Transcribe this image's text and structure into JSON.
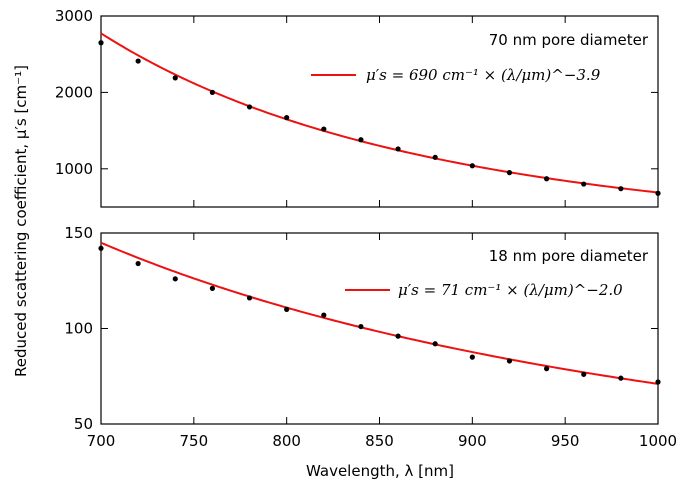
{
  "chart_data": [
    {
      "type": "scatter",
      "title": "70 nm pore diameter",
      "xlim": [
        700,
        1000
      ],
      "ylim": [
        500,
        3000
      ],
      "yticks": [
        1000,
        2000,
        3000
      ],
      "ytick_labels": [
        "1000",
        "2000",
        "3000"
      ],
      "grid": false,
      "legend_placement": "top-right",
      "series": [
        {
          "kind": "points",
          "x": [
            700,
            720,
            740,
            760,
            780,
            800,
            820,
            840,
            860,
            880,
            900,
            920,
            940,
            960,
            980,
            1000
          ],
          "y": [
            2650,
            2410,
            2190,
            2000,
            1810,
            1670,
            1520,
            1380,
            1260,
            1150,
            1040,
            950,
            870,
            800,
            740,
            680
          ]
        },
        {
          "kind": "fit",
          "name": "μ′s = 690 cm⁻¹ × (λ/μm)^−3.9",
          "color": "#ee1111",
          "amplitude": 690,
          "exponent": -3.9
        }
      ]
    },
    {
      "type": "scatter",
      "title": "18 nm pore diameter",
      "xlim": [
        700,
        1000
      ],
      "ylim": [
        50,
        150
      ],
      "yticks": [
        50,
        100,
        150
      ],
      "ytick_labels": [
        "50",
        "100",
        "150"
      ],
      "xticks": [
        700,
        750,
        800,
        850,
        900,
        950,
        1000
      ],
      "xtick_labels": [
        "700",
        "750",
        "800",
        "850",
        "900",
        "950",
        "1000"
      ],
      "grid": false,
      "legend_placement": "top-right",
      "series": [
        {
          "kind": "points",
          "x": [
            700,
            720,
            740,
            760,
            780,
            800,
            820,
            840,
            860,
            880,
            900,
            920,
            940,
            960,
            980,
            1000
          ],
          "y": [
            142,
            134,
            126,
            121,
            116,
            110,
            107,
            101,
            96,
            92,
            85,
            83,
            79,
            76,
            74,
            72
          ]
        },
        {
          "kind": "fit",
          "name": "μ′s = 71 cm⁻¹ × (λ/μm)^−2.0",
          "color": "#ee1111",
          "amplitude": 71,
          "exponent": -2.0
        }
      ]
    }
  ],
  "labels": {
    "xlabel": "Wavelength, λ [nm]",
    "ylabel": "Reduced scattering coefficient, μ′s [cm⁻¹]"
  }
}
